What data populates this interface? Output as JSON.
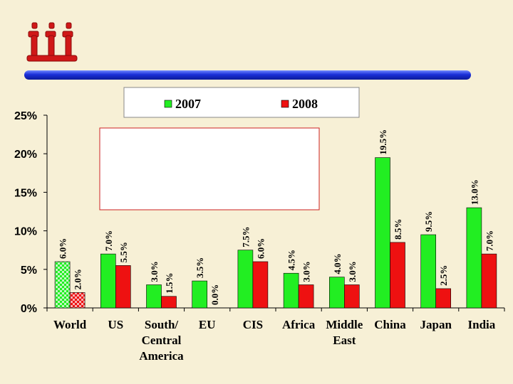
{
  "logo": {
    "alt": "logo"
  },
  "colors": {
    "background": "#f7f0d6",
    "series_2007": "#22ee22",
    "series_2008": "#ee1111",
    "divider_bar": "#1a2fd8",
    "logo_red": "#d01818"
  },
  "chart_data": {
    "type": "bar",
    "title": "",
    "xlabel": "",
    "ylabel": "",
    "ylim": [
      0,
      25
    ],
    "yticks": [
      "0%",
      "5%",
      "10%",
      "15%",
      "20%",
      "25%"
    ],
    "ytick_values": [
      0,
      5,
      10,
      15,
      20,
      25
    ],
    "categories": [
      "World",
      "US",
      "South/ Central America",
      "EU",
      "CIS",
      "Africa",
      "Middle East",
      "China",
      "Japan",
      "India"
    ],
    "category_lines": [
      [
        "World"
      ],
      [
        "US"
      ],
      [
        "South/",
        "Central",
        "America"
      ],
      [
        "EU"
      ],
      [
        "CIS"
      ],
      [
        "Africa"
      ],
      [
        "Middle",
        "East"
      ],
      [
        "China"
      ],
      [
        "Japan"
      ],
      [
        "India"
      ]
    ],
    "legend_position": "top",
    "grid": false,
    "series": [
      {
        "name": "2007",
        "values": [
          6.0,
          7.0,
          3.0,
          3.5,
          7.5,
          4.5,
          4.0,
          19.5,
          9.5,
          13.0
        ],
        "labels": [
          "6.0%",
          "7.0%",
          "3.0%",
          "3.5%",
          "7.5%",
          "4.5%",
          "4.0%",
          "19.5%",
          "9.5%",
          "13.0%"
        ]
      },
      {
        "name": "2008",
        "values": [
          2.0,
          5.5,
          1.5,
          0.0,
          6.0,
          3.0,
          3.0,
          8.5,
          2.5,
          7.0
        ],
        "labels": [
          "2.0%",
          "5.5%",
          "1.5%",
          "0.0%",
          "6.0%",
          "3.0%",
          "3.0%",
          "8.5%",
          "2.5%",
          "7.0%"
        ]
      }
    ],
    "highlighted_category": "World"
  }
}
